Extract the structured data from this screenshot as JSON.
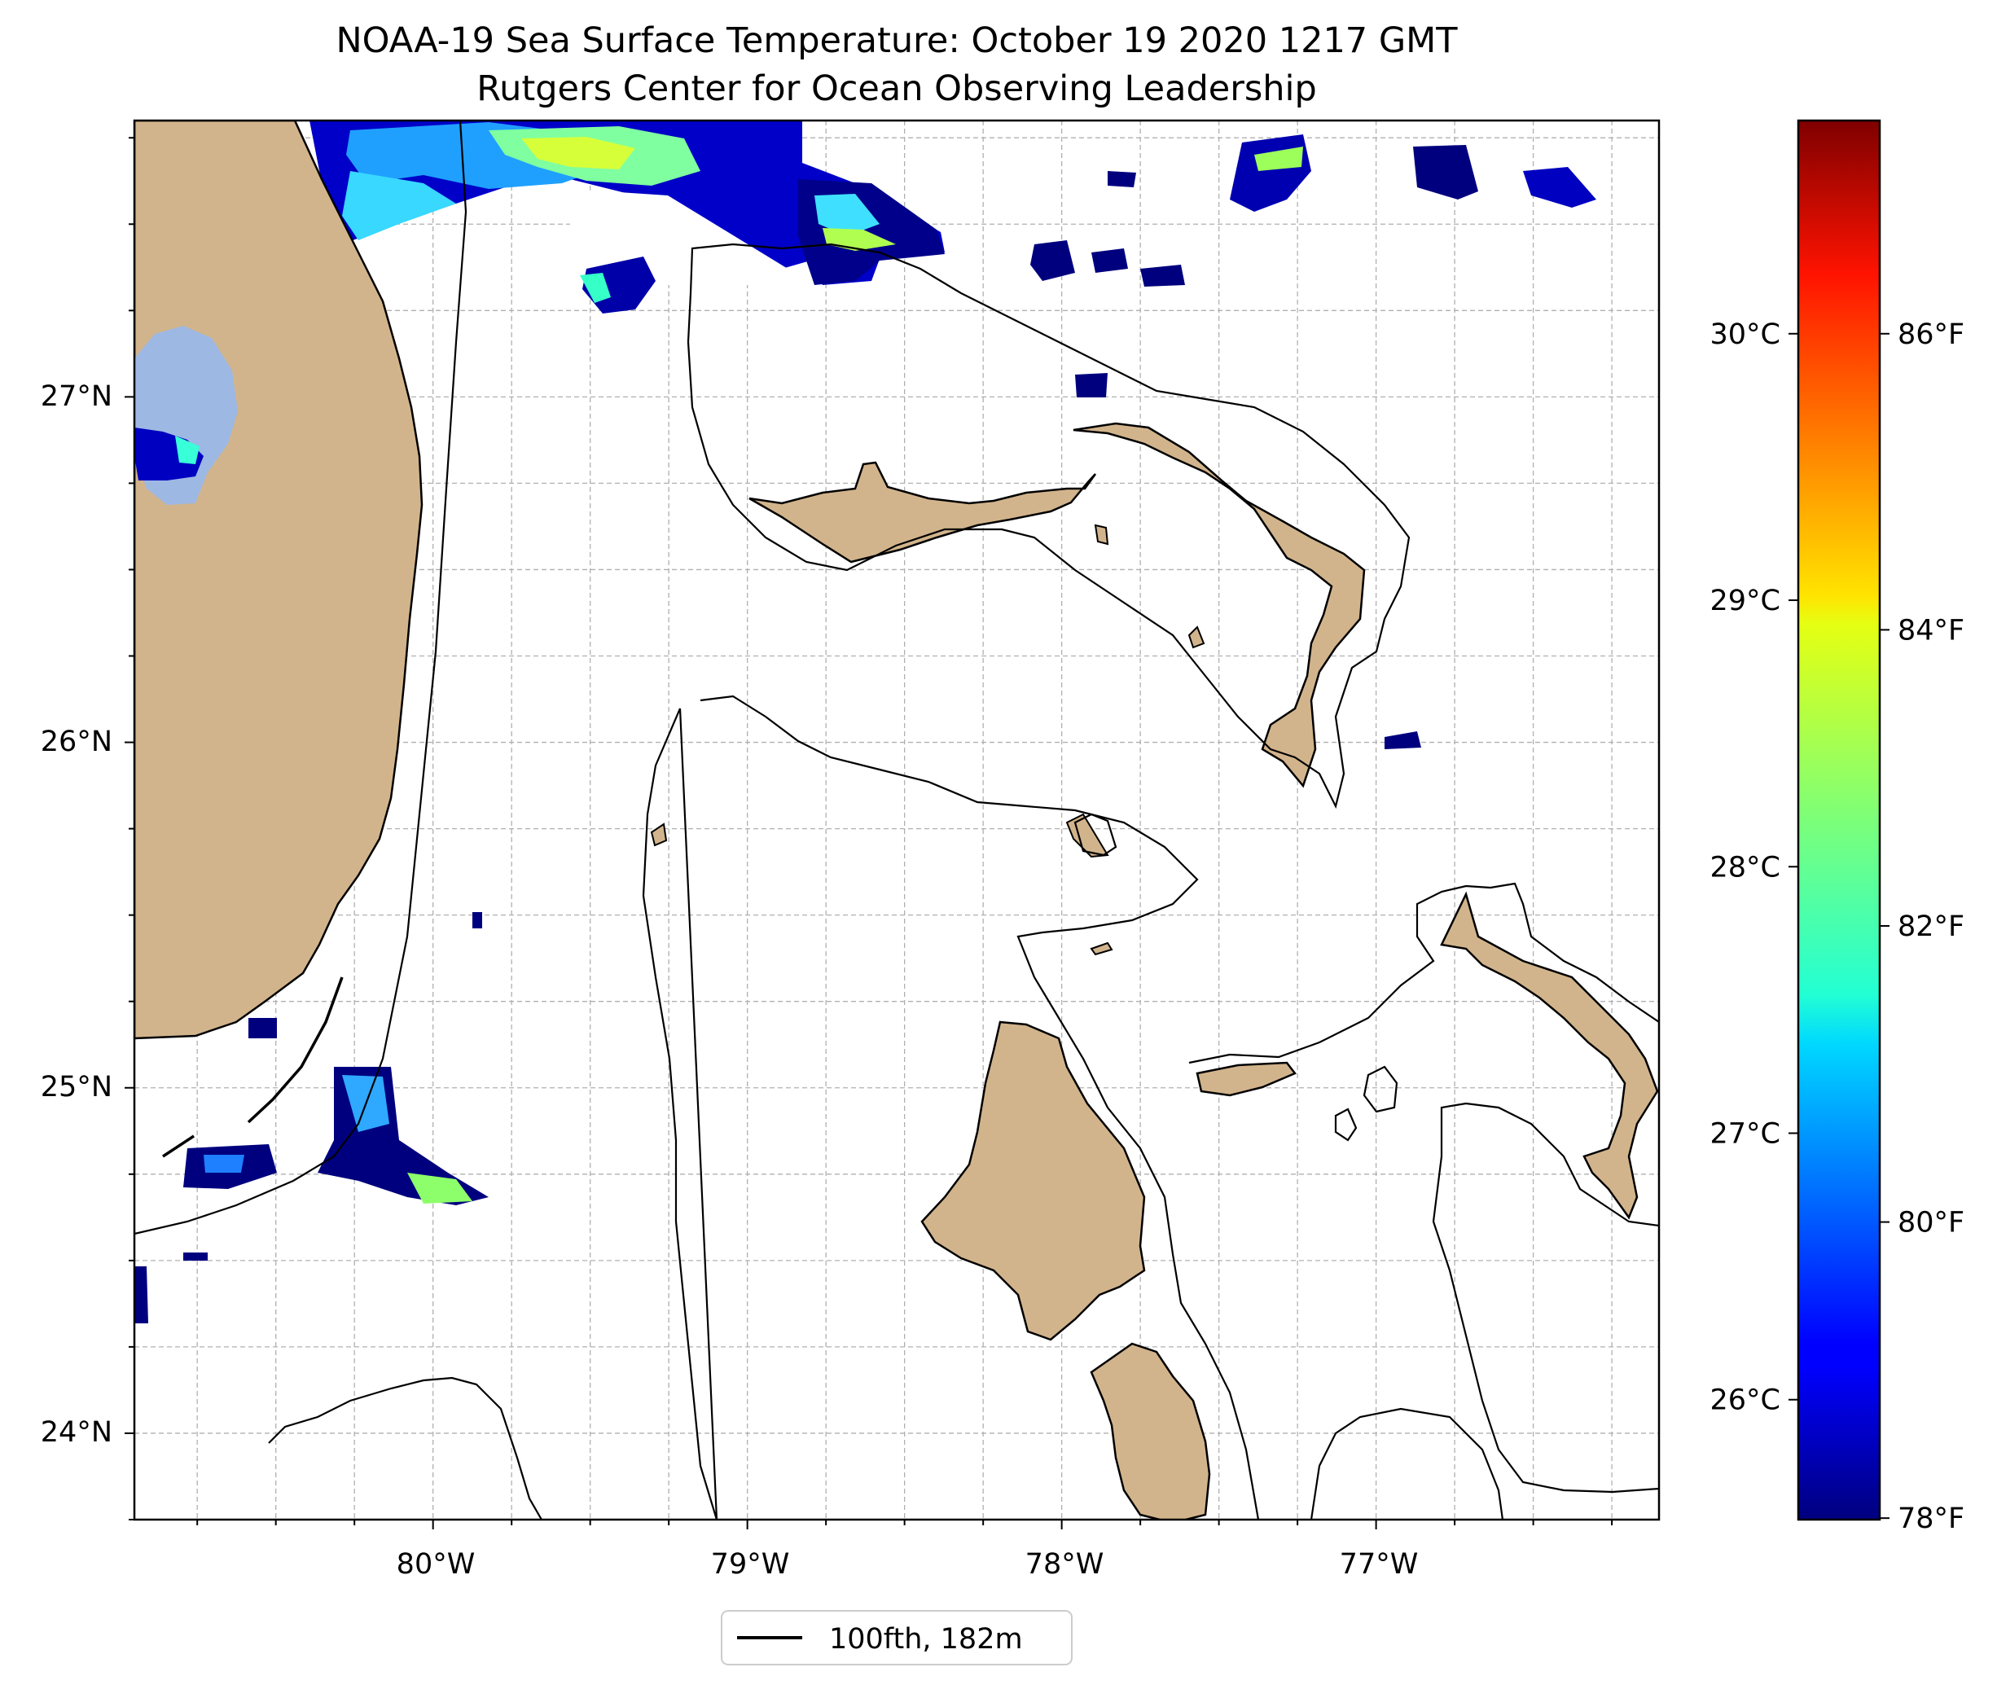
{
  "title": {
    "line1": "NOAA-19 Sea Surface Temperature: October 19 2020 1217 GMT",
    "line2": "Rutgers Center for Ocean Observing Leadership"
  },
  "map": {
    "lon_range": [
      -80.95,
      -76.1
    ],
    "lat_range": [
      23.75,
      27.8
    ],
    "gridlines": true,
    "x_ticks": [
      {
        "value": -80,
        "label": "80°W"
      },
      {
        "value": -79,
        "label": "79°W"
      },
      {
        "value": -78,
        "label": "78°W"
      },
      {
        "value": -77,
        "label": "77°W"
      }
    ],
    "y_ticks": [
      {
        "value": 27,
        "label": "27°N"
      },
      {
        "value": 26,
        "label": "26°N"
      },
      {
        "value": 25,
        "label": "25°N"
      },
      {
        "value": 24,
        "label": "24°N"
      }
    ],
    "colors": {
      "land": "#d2b48c",
      "lake": "#9db8e3",
      "coast": "#000000",
      "grid": "#b0b0b0"
    },
    "regions": [
      "Florida",
      "Grand Bahama",
      "Great Abaco",
      "Andros",
      "Eleuthera",
      "New Providence",
      "Berry Islands",
      "Bimini"
    ]
  },
  "legend": {
    "entries": [
      {
        "label": "100fth, 182m",
        "color": "#000000"
      }
    ],
    "placement": "bottom-center"
  },
  "colorbar": {
    "colormap": "jet",
    "range_c": [
      25.55,
      30.8
    ],
    "celsius_ticks": [
      {
        "value": 26,
        "label": "26°C"
      },
      {
        "value": 27,
        "label": "27°C"
      },
      {
        "value": 28,
        "label": "28°C"
      },
      {
        "value": 29,
        "label": "29°C"
      },
      {
        "value": 30,
        "label": "30°C"
      }
    ],
    "fahrenheit_ticks": [
      {
        "value": 78,
        "label": "78°F"
      },
      {
        "value": 80,
        "label": "80°F"
      },
      {
        "value": 82,
        "label": "82°F"
      },
      {
        "value": 84,
        "label": "84°F"
      },
      {
        "value": 86,
        "label": "86°F"
      }
    ]
  }
}
